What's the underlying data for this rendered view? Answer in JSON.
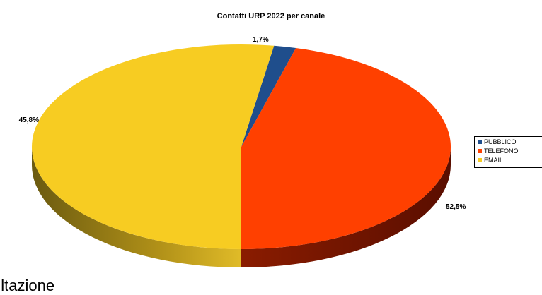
{
  "chart_data": {
    "type": "pie",
    "title": "Contatti URP 2022 per canale",
    "categories": [
      "PUBBLICO",
      "TELEFONO",
      "EMAIL"
    ],
    "values": [
      1.7,
      45.8,
      52.5
    ],
    "data_labels": [
      "1,7%",
      "45,8%",
      "52,5%"
    ],
    "colors": [
      "#1f4e8c",
      "#ff4000",
      "#f7cc22"
    ],
    "legend_placement": "right",
    "style": "3d"
  },
  "legend": {
    "items": [
      {
        "label": "PUBBLICO",
        "color": "#1f4e8c"
      },
      {
        "label": "TELEFONO",
        "color": "#ff4000"
      },
      {
        "label": "EMAIL",
        "color": "#f7cc22"
      }
    ]
  },
  "background_text": "sultazione"
}
